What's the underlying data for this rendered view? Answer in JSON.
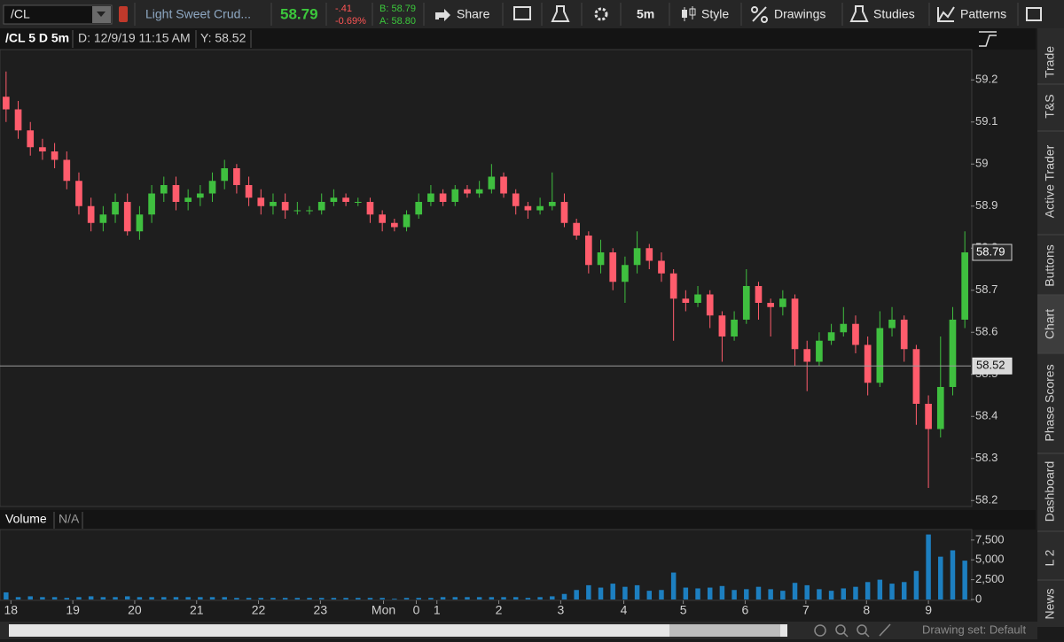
{
  "toolbar": {
    "symbol": "/CL",
    "description": "Light Sweet Crud...",
    "last": "58.79",
    "net_change": "-.41",
    "percent_change": "-0.69%",
    "bid": "B: 58.79",
    "ask": "A: 58.80",
    "share": "Share",
    "aggregation": "5m",
    "style": "Style",
    "drawings": "Drawings",
    "studies": "Studies",
    "patterns": "Patterns"
  },
  "chart_header": {
    "title": "/CL 5 D 5m",
    "date": "D: 12/9/19 11:15 AM",
    "cursor": "Y: 58.52"
  },
  "volume_header": {
    "title": "Volume",
    "value": "N/A"
  },
  "side_tabs": [
    "Trade",
    "T&S",
    "Active Trader",
    "Buttons",
    "Chart",
    "Phase Scores",
    "Dashboard",
    "L 2",
    "News"
  ],
  "status_bar": {
    "drawing_set": "Drawing set: Default"
  },
  "chart_data": [
    {
      "type": "candlestick",
      "up_color": "#3fbf3f",
      "down_color": "#ff5c6c",
      "xlim": [
        0,
        80
      ],
      "xticks": [
        {
          "value": 0.9,
          "label": "18"
        },
        {
          "value": 6.0,
          "label": "19"
        },
        {
          "value": 11.1,
          "label": "20"
        },
        {
          "value": 16.2,
          "label": "21"
        },
        {
          "value": 21.3,
          "label": "22"
        },
        {
          "value": 26.4,
          "label": "23"
        },
        {
          "value": 31.6,
          "label": "Mon"
        },
        {
          "value": 34.3,
          "label": "0"
        },
        {
          "value": 36.0,
          "label": "1"
        },
        {
          "value": 41.1,
          "label": "2"
        },
        {
          "value": 46.2,
          "label": "3"
        },
        {
          "value": 51.4,
          "label": "4"
        },
        {
          "value": 56.3,
          "label": "5"
        },
        {
          "value": 61.4,
          "label": "6"
        },
        {
          "value": 66.4,
          "label": "7"
        },
        {
          "value": 71.4,
          "label": "8"
        },
        {
          "value": 76.5,
          "label": "9"
        }
      ],
      "ylim": [
        58.19,
        59.27
      ],
      "yticks": [
        58.2,
        58.3,
        58.4,
        58.5,
        58.6,
        58.7,
        58.8,
        58.9,
        59,
        59.1,
        59.2
      ],
      "last_price": 58.79,
      "cursor_price": 58.52,
      "open": [
        59.16,
        59.13,
        59.08,
        59.04,
        59.03,
        59.01,
        58.96,
        58.9,
        58.86,
        58.88,
        58.91,
        58.84,
        58.88,
        58.93,
        58.95,
        58.91,
        58.92,
        58.93,
        58.96,
        58.99,
        58.95,
        58.92,
        58.9,
        58.91,
        58.89,
        58.89,
        58.89,
        58.91,
        58.92,
        58.91,
        58.91,
        58.88,
        58.86,
        58.85,
        58.88,
        58.91,
        58.93,
        58.91,
        58.94,
        58.93,
        58.94,
        58.97,
        58.93,
        58.9,
        58.89,
        58.9,
        58.91,
        58.86,
        58.83,
        58.76,
        58.79,
        58.72,
        58.76,
        58.8,
        58.77,
        58.74,
        58.68,
        58.67,
        58.69,
        58.64,
        58.59,
        58.63,
        58.71,
        58.67,
        58.66,
        58.68,
        58.56,
        58.53,
        58.58,
        58.6,
        58.62,
        58.57,
        58.48,
        58.61,
        58.63,
        58.56,
        58.43,
        58.37,
        58.47,
        58.63
      ],
      "high": [
        59.22,
        59.15,
        59.1,
        59.06,
        59.05,
        59.03,
        58.98,
        58.92,
        58.9,
        58.93,
        58.93,
        58.9,
        58.95,
        58.97,
        58.97,
        58.94,
        58.95,
        58.98,
        59.01,
        59.0,
        58.97,
        58.94,
        58.93,
        58.93,
        58.91,
        58.9,
        58.93,
        58.94,
        58.93,
        58.92,
        58.92,
        58.89,
        58.87,
        58.89,
        58.93,
        58.95,
        58.94,
        58.95,
        58.95,
        58.96,
        59.0,
        58.98,
        58.94,
        58.91,
        58.92,
        58.98,
        58.93,
        58.87,
        58.84,
        58.82,
        58.8,
        58.78,
        58.84,
        58.81,
        58.79,
        58.75,
        58.7,
        58.71,
        58.7,
        58.65,
        58.65,
        58.75,
        58.72,
        58.68,
        58.7,
        58.69,
        58.58,
        58.6,
        58.62,
        58.66,
        58.64,
        58.59,
        58.65,
        58.66,
        58.64,
        58.57,
        58.45,
        58.59,
        58.66,
        58.84
      ],
      "low": [
        59.1,
        59.06,
        59.02,
        59.01,
        58.99,
        58.94,
        58.88,
        58.84,
        58.84,
        58.86,
        58.83,
        58.82,
        58.86,
        58.91,
        58.89,
        58.89,
        58.9,
        58.91,
        58.94,
        58.93,
        58.9,
        58.88,
        58.88,
        58.87,
        58.88,
        58.88,
        58.88,
        58.9,
        58.9,
        58.9,
        58.86,
        58.84,
        58.84,
        58.84,
        58.87,
        58.9,
        58.9,
        58.9,
        58.92,
        58.92,
        58.93,
        58.92,
        58.88,
        58.87,
        58.88,
        58.89,
        58.85,
        58.82,
        58.74,
        58.74,
        58.7,
        58.67,
        58.74,
        58.75,
        58.72,
        58.58,
        58.65,
        58.66,
        58.61,
        58.53,
        58.58,
        58.62,
        58.63,
        58.59,
        58.64,
        58.52,
        58.46,
        58.52,
        58.57,
        58.59,
        58.55,
        58.45,
        58.47,
        58.59,
        58.53,
        58.38,
        58.23,
        58.35,
        58.45,
        58.61
      ],
      "close": [
        59.13,
        59.08,
        59.04,
        59.03,
        59.01,
        58.96,
        58.9,
        58.86,
        58.88,
        58.91,
        58.84,
        58.88,
        58.93,
        58.95,
        58.91,
        58.92,
        58.93,
        58.96,
        58.99,
        58.95,
        58.92,
        58.9,
        58.91,
        58.89,
        58.89,
        58.89,
        58.91,
        58.92,
        58.91,
        58.91,
        58.88,
        58.86,
        58.85,
        58.88,
        58.91,
        58.93,
        58.91,
        58.94,
        58.93,
        58.94,
        58.97,
        58.93,
        58.9,
        58.89,
        58.9,
        58.91,
        58.86,
        58.83,
        58.76,
        58.79,
        58.72,
        58.76,
        58.8,
        58.77,
        58.74,
        58.68,
        58.67,
        58.69,
        58.64,
        58.59,
        58.63,
        58.71,
        58.67,
        58.66,
        58.68,
        58.56,
        58.53,
        58.58,
        58.6,
        58.62,
        58.57,
        58.48,
        58.61,
        58.63,
        58.56,
        58.43,
        58.37,
        58.47,
        58.63,
        58.79
      ]
    },
    {
      "type": "bar",
      "color": "#1d7fc0",
      "xlim": [
        0,
        80
      ],
      "ylim": [
        0,
        8600
      ],
      "yticks": [
        0,
        {
          "value": 2500,
          "label": "2,500"
        },
        {
          "value": 5000,
          "label": "5,000"
        },
        {
          "value": 7500,
          "label": "7,500"
        }
      ],
      "values": [
        900,
        300,
        400,
        300,
        300,
        200,
        300,
        400,
        300,
        300,
        400,
        300,
        300,
        300,
        300,
        300,
        300,
        300,
        300,
        200,
        200,
        200,
        200,
        200,
        200,
        200,
        200,
        200,
        200,
        200,
        200,
        200,
        100,
        200,
        200,
        200,
        300,
        300,
        300,
        300,
        300,
        300,
        300,
        200,
        300,
        400,
        700,
        1200,
        1800,
        1500,
        2000,
        1600,
        1800,
        1100,
        1200,
        3400,
        1500,
        1400,
        1500,
        1700,
        1200,
        1300,
        1600,
        1300,
        1100,
        2100,
        1800,
        1300,
        1100,
        1400,
        1600,
        2200,
        2500,
        2000,
        2200,
        3600,
        8200,
        5400,
        6200,
        4900
      ]
    }
  ]
}
